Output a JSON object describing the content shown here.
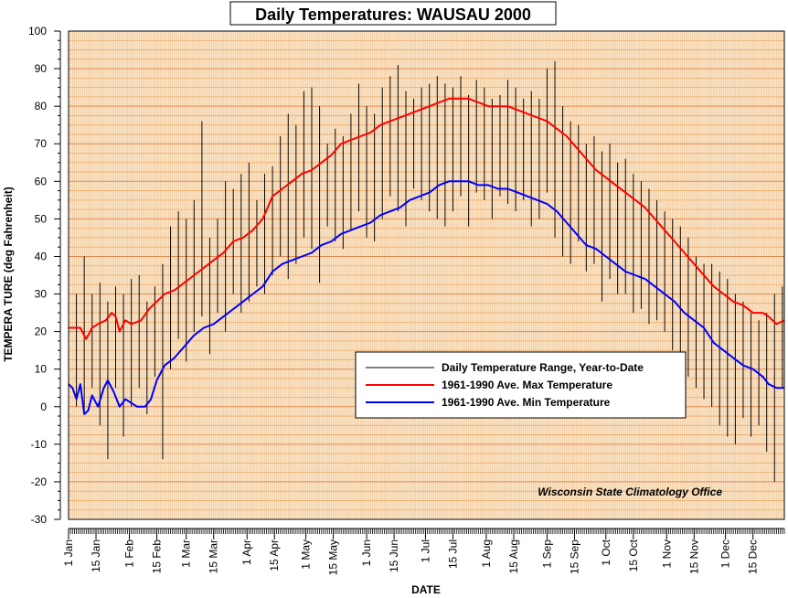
{
  "chart_data": {
    "type": "line",
    "title": "Daily Temperatures: WAUSAU 2000",
    "xlabel": "DATE",
    "ylabel": "TEMPERA TURE (deg Fahrenheit)",
    "ylim": [
      -30,
      100
    ],
    "yticks": [
      -30,
      -20,
      -10,
      0,
      10,
      20,
      30,
      40,
      50,
      60,
      70,
      80,
      90,
      100
    ],
    "xlim_day_of_year": [
      1,
      366
    ],
    "xticks": [
      {
        "label": "1 Jan",
        "day": 1
      },
      {
        "label": "15 Jan",
        "day": 15
      },
      {
        "label": "1 Feb",
        "day": 32
      },
      {
        "label": "15 Feb",
        "day": 46
      },
      {
        "label": "1 Mar",
        "day": 61
      },
      {
        "label": "15 Mar",
        "day": 75
      },
      {
        "label": "1 Apr",
        "day": 92
      },
      {
        "label": "15 Apr",
        "day": 106
      },
      {
        "label": "1 May",
        "day": 122
      },
      {
        "label": "15 May",
        "day": 136
      },
      {
        "label": "1 Jun",
        "day": 153
      },
      {
        "label": "15 Jun",
        "day": 167
      },
      {
        "label": "1 Jul",
        "day": 183
      },
      {
        "label": "15 Jul",
        "day": 197
      },
      {
        "label": "1 Aug",
        "day": 214
      },
      {
        "label": "15 Aug",
        "day": 228
      },
      {
        "label": "1 Sep",
        "day": 245
      },
      {
        "label": "15 Sep",
        "day": 259
      },
      {
        "label": "1 Oct",
        "day": 275
      },
      {
        "label": "15 Oct",
        "day": 289
      },
      {
        "label": "1 Nov",
        "day": 306
      },
      {
        "label": "15 Nov",
        "day": 320
      },
      {
        "label": "1 Dec",
        "day": 336
      },
      {
        "label": "15 Dec",
        "day": 350
      }
    ],
    "grid": true,
    "legend_position": "center-right",
    "annotation": "Wisconsin State Climatology Office",
    "series": [
      {
        "name": "Daily Temperature Range, Year-to-Date",
        "kind": "range-bars",
        "color": "#000000",
        "day": [
          1,
          5,
          9,
          13,
          17,
          21,
          25,
          29,
          33,
          37,
          41,
          45,
          49,
          53,
          57,
          61,
          65,
          69,
          73,
          77,
          81,
          85,
          89,
          93,
          97,
          101,
          105,
          109,
          113,
          117,
          121,
          125,
          129,
          133,
          137,
          141,
          145,
          149,
          153,
          157,
          161,
          165,
          169,
          173,
          177,
          181,
          185,
          189,
          193,
          197,
          201,
          205,
          209,
          213,
          217,
          221,
          225,
          229,
          233,
          237,
          241,
          245,
          249,
          253,
          257,
          261,
          265,
          269,
          273,
          277,
          281,
          285,
          289,
          293,
          297,
          301,
          305,
          309,
          313,
          317,
          321,
          325,
          329,
          333,
          337,
          341,
          345,
          349,
          353,
          357,
          361,
          365
        ],
        "high": [
          36,
          30,
          40,
          30,
          33,
          28,
          32,
          30,
          34,
          35,
          28,
          32,
          38,
          48,
          52,
          50,
          55,
          76,
          45,
          50,
          60,
          58,
          62,
          65,
          55,
          62,
          64,
          72,
          78,
          75,
          84,
          85,
          80,
          70,
          74,
          72,
          78,
          86,
          80,
          78,
          85,
          88,
          91,
          84,
          82,
          85,
          86,
          88,
          86,
          85,
          88,
          83,
          87,
          85,
          82,
          83,
          87,
          85,
          82,
          84,
          82,
          90,
          92,
          80,
          76,
          75,
          70,
          72,
          68,
          70,
          65,
          66,
          62,
          60,
          58,
          55,
          52,
          50,
          48,
          45,
          40,
          38,
          38,
          36,
          34,
          30,
          28,
          25,
          23,
          25,
          30,
          32
        ],
        "low": [
          10,
          0,
          -2,
          5,
          -5,
          -14,
          5,
          -8,
          0,
          5,
          -2,
          8,
          -14,
          10,
          18,
          12,
          20,
          24,
          14,
          25,
          20,
          30,
          25,
          28,
          32,
          30,
          35,
          40,
          34,
          38,
          45,
          42,
          33,
          48,
          44,
          42,
          47,
          52,
          45,
          44,
          50,
          56,
          52,
          48,
          58,
          55,
          52,
          50,
          48,
          52,
          56,
          48,
          57,
          55,
          50,
          56,
          54,
          52,
          55,
          48,
          50,
          57,
          45,
          40,
          38,
          44,
          36,
          38,
          28,
          34,
          30,
          30,
          25,
          26,
          22,
          23,
          20,
          15,
          12,
          8,
          5,
          2,
          0,
          -5,
          -8,
          -10,
          -3,
          -8,
          -5,
          -12,
          -20,
          5
        ]
      },
      {
        "name": "1961-1990 Ave. Max Temperature",
        "kind": "line",
        "color": "#ff0000",
        "day": [
          1,
          7,
          10,
          13,
          16,
          20,
          23,
          25,
          27,
          30,
          33,
          38,
          42,
          46,
          50,
          55,
          60,
          65,
          70,
          75,
          80,
          85,
          90,
          95,
          100,
          105,
          110,
          115,
          120,
          125,
          130,
          135,
          140,
          145,
          150,
          155,
          160,
          165,
          170,
          175,
          180,
          185,
          190,
          195,
          200,
          205,
          210,
          215,
          220,
          225,
          230,
          235,
          240,
          245,
          250,
          255,
          260,
          265,
          270,
          275,
          280,
          285,
          290,
          295,
          300,
          305,
          310,
          315,
          320,
          325,
          330,
          335,
          340,
          345,
          350,
          355,
          358,
          362,
          366
        ],
        "values": [
          21,
          21,
          18,
          21,
          22,
          23,
          25,
          24,
          20,
          23,
          22,
          23,
          26,
          28,
          30,
          31,
          33,
          35,
          37,
          39,
          41,
          44,
          45,
          47,
          50,
          56,
          58,
          60,
          62,
          63,
          65,
          67,
          70,
          71,
          72,
          73,
          75,
          76,
          77,
          78,
          79,
          80,
          81,
          82,
          82,
          82,
          81,
          80,
          80,
          80,
          79,
          78,
          77,
          76,
          74,
          72,
          69,
          66,
          63,
          61,
          59,
          57,
          55,
          53,
          50,
          47,
          44,
          41,
          38,
          35,
          32,
          30,
          28,
          27,
          25,
          25,
          24,
          22,
          23
        ]
      },
      {
        "name": "1961-1990 Ave. Min Temperature",
        "kind": "line",
        "color": "#0000ff",
        "day": [
          1,
          3,
          5,
          7,
          9,
          11,
          13,
          16,
          19,
          21,
          24,
          27,
          30,
          33,
          36,
          40,
          43,
          46,
          50,
          55,
          60,
          65,
          70,
          75,
          80,
          85,
          90,
          95,
          100,
          105,
          110,
          115,
          120,
          125,
          130,
          135,
          140,
          145,
          150,
          155,
          160,
          165,
          170,
          175,
          180,
          185,
          190,
          195,
          200,
          205,
          210,
          215,
          220,
          225,
          230,
          235,
          240,
          245,
          250,
          255,
          260,
          265,
          270,
          275,
          280,
          285,
          290,
          295,
          300,
          305,
          310,
          315,
          320,
          325,
          330,
          335,
          340,
          345,
          350,
          355,
          358,
          362,
          366
        ],
        "values": [
          6,
          5,
          2,
          6,
          -2,
          -1,
          3,
          0,
          5,
          7,
          4,
          0,
          2,
          1,
          0,
          0,
          2,
          7,
          11,
          13,
          16,
          19,
          21,
          22,
          24,
          26,
          28,
          30,
          32,
          36,
          38,
          39,
          40,
          41,
          43,
          44,
          46,
          47,
          48,
          49,
          51,
          52,
          53,
          55,
          56,
          57,
          59,
          60,
          60,
          60,
          59,
          59,
          58,
          58,
          57,
          56,
          55,
          54,
          52,
          49,
          46,
          43,
          42,
          40,
          38,
          36,
          35,
          34,
          32,
          30,
          28,
          25,
          23,
          21,
          17,
          15,
          13,
          11,
          10,
          8,
          6,
          5,
          5
        ]
      }
    ]
  }
}
